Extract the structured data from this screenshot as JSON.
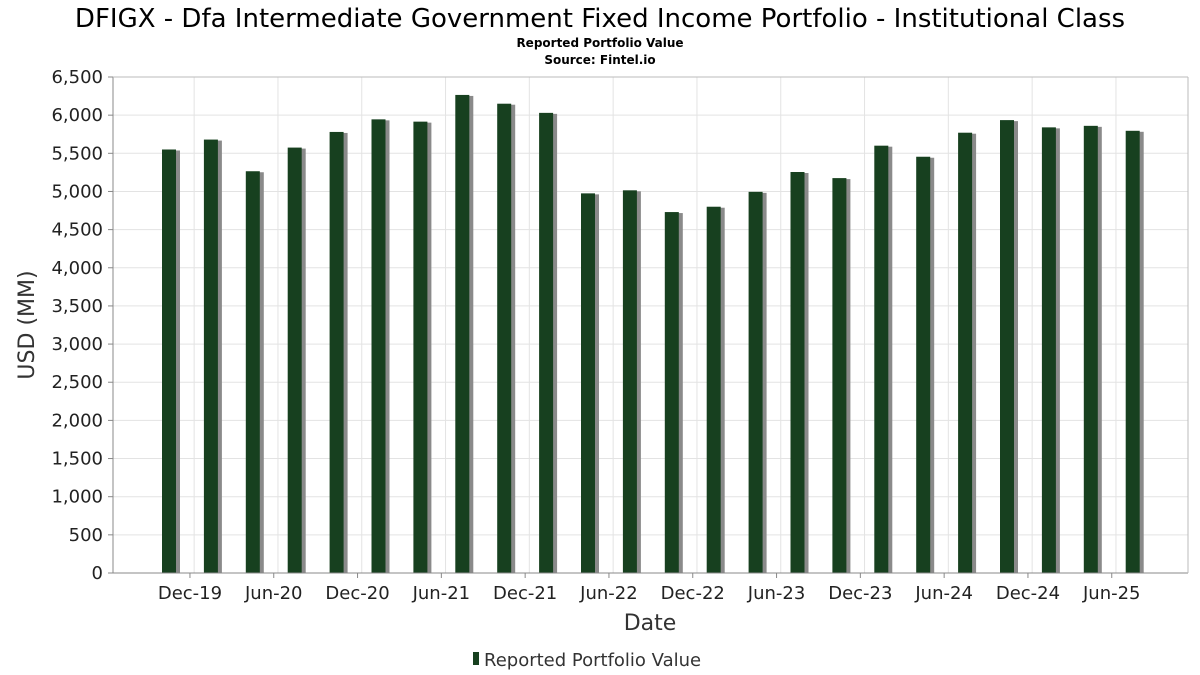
{
  "chart_data": {
    "type": "bar",
    "title": "DFIGX - Dfa Intermediate Government Fixed Income Portfolio - Institutional Class",
    "subtitle": "Reported Portfolio Value",
    "source": "Source: Fintel.io",
    "xlabel": "Date",
    "ylabel": "USD (MM)",
    "ylim": [
      0,
      6500
    ],
    "yticks": [
      0,
      500,
      1000,
      1500,
      2000,
      2500,
      3000,
      3500,
      4000,
      4500,
      5000,
      5500,
      6000,
      6500
    ],
    "ytick_labels": [
      "0",
      "500",
      "1,000",
      "1,500",
      "2,000",
      "2,500",
      "3,000",
      "3,500",
      "4,000",
      "4,500",
      "5,000",
      "5,500",
      "6,000",
      "6,500"
    ],
    "xtick_labels": [
      "Dec-19",
      "Jun-20",
      "Dec-20",
      "Jun-21",
      "Dec-21",
      "Jun-22",
      "Dec-22",
      "Jun-23",
      "Dec-23",
      "Jun-24",
      "Dec-24",
      "Jun-25"
    ],
    "grid": true,
    "legend": "bottom-center",
    "bar_color": "#17401f",
    "series": [
      {
        "name": "Reported Portfolio Value",
        "values": [
          5550,
          5680,
          5265,
          5575,
          5780,
          5945,
          5915,
          6265,
          6150,
          6030,
          4975,
          5015,
          4730,
          4800,
          4995,
          5255,
          5175,
          5600,
          5455,
          5770,
          5935,
          5840,
          5860,
          5795
        ]
      }
    ]
  }
}
